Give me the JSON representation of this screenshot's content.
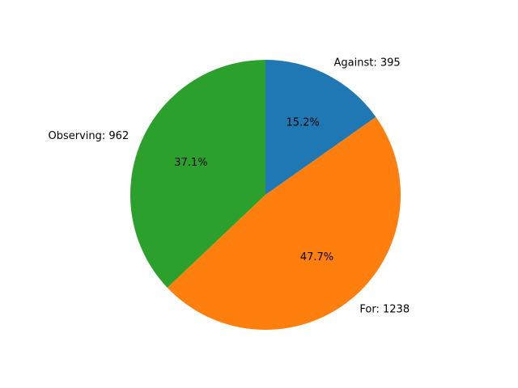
{
  "chart_data": {
    "type": "pie",
    "title": "",
    "startangle_deg": 90,
    "direction": "clockwise",
    "slices": [
      {
        "label": "Against",
        "value": 395,
        "label_text": "Against: 395",
        "pct_text": "15.2%",
        "color": "#1f77b4"
      },
      {
        "label": "For",
        "value": 1238,
        "label_text": "For: 1238",
        "pct_text": "47.7%",
        "color": "#ff7f0e"
      },
      {
        "label": "Observing",
        "value": 962,
        "label_text": "Observing: 962",
        "pct_text": "37.1%",
        "color": "#2ca02c"
      }
    ]
  }
}
